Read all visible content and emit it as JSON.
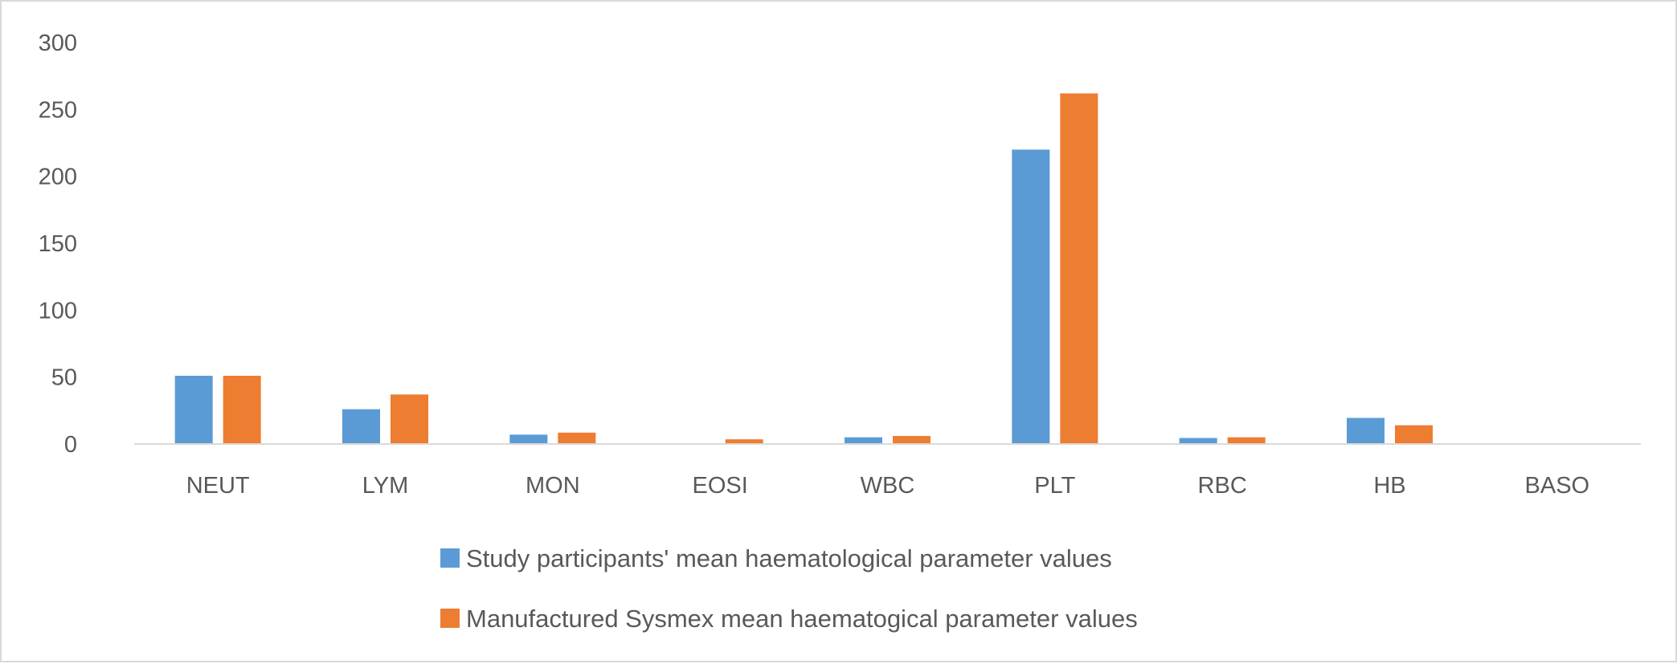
{
  "chart_data": {
    "type": "bar",
    "categories": [
      "NEUT",
      "LYM",
      "MON",
      "EOSI",
      "WBC",
      "PLT",
      "RBC",
      "HB",
      "BASO"
    ],
    "series": [
      {
        "name": "Study participants' mean haematological parameter values",
        "color": "#5b9bd5",
        "values": [
          51,
          26,
          7,
          0.5,
          5,
          220,
          4.5,
          19.5,
          0.3
        ]
      },
      {
        "name": "Manufactured Sysmex mean haematogical parameter values",
        "color": "#ed7d31",
        "values": [
          51,
          37,
          8.5,
          3.5,
          6,
          262,
          5,
          14,
          0.5
        ]
      }
    ],
    "ylim": [
      0,
      300
    ],
    "yticks": [
      0,
      50,
      100,
      150,
      200,
      250,
      300
    ],
    "grid": false,
    "legend": "bottom"
  }
}
